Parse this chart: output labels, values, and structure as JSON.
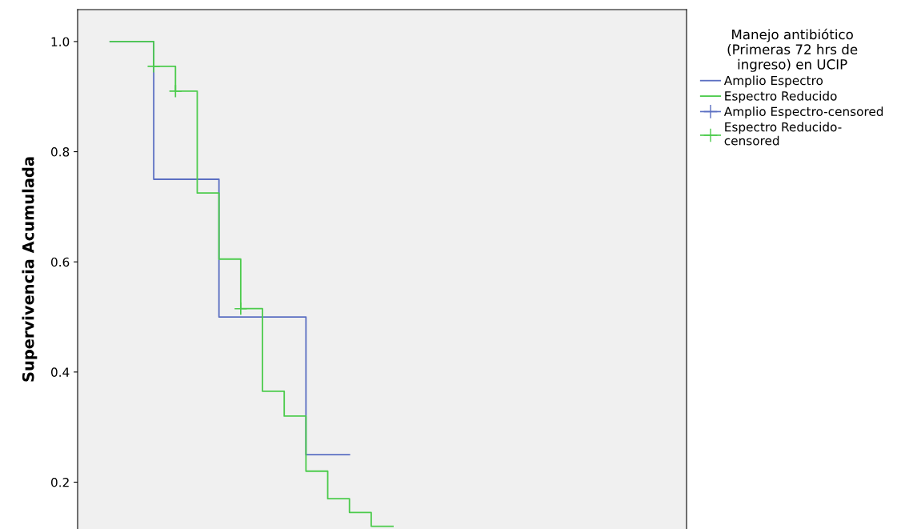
{
  "chart_data": {
    "type": "step",
    "ylabel": "Supervivencia Acumulada",
    "legend_title": "Manejo antibiótico\n(Primeras 72 hrs de\ningreso) en UCIP",
    "categories": [
      null,
      null,
      null,
      null,
      null,
      null,
      null,
      null,
      null,
      null,
      null,
      null,
      null,
      null,
      null,
      null,
      null,
      null,
      null,
      null,
      null,
      null,
      null,
      null,
      null,
      null,
      null,
      null
    ],
    "series": [
      {
        "name": "Amplio Espectro",
        "color": "#5b6fc2",
        "values": [
          null,
          1.0,
          1.0,
          0.75,
          0.75,
          0.75,
          0.5,
          0.5,
          0.5,
          0.5,
          0.25,
          0.25,
          0.25,
          null,
          null,
          null,
          null,
          null,
          null,
          null,
          null,
          null,
          null,
          null,
          null,
          null,
          null,
          null
        ]
      },
      {
        "name": "Espectro Reducido",
        "color": "#4ccb4c",
        "values": [
          null,
          1.0,
          1.0,
          0.955,
          0.91,
          0.725,
          0.605,
          0.515,
          0.365,
          0.32,
          0.22,
          0.17,
          0.145,
          0.12,
          0.12,
          null,
          null,
          null,
          null,
          null,
          null,
          null,
          null,
          null,
          null,
          null,
          null,
          null
        ]
      },
      {
        "name": "Amplio Espectro-censored",
        "color": "#5b6fc2",
        "type": "scatter",
        "marker": "cross",
        "values": [
          null,
          null,
          null,
          null,
          null,
          null,
          null,
          null,
          null,
          null,
          null,
          null,
          null,
          null,
          null,
          null,
          null,
          null,
          null,
          null,
          null,
          null,
          null,
          null,
          null,
          null,
          null,
          null
        ]
      },
      {
        "name": "Espectro Reducido-\ncensored",
        "color": "#4ccb4c",
        "type": "scatter",
        "marker": "cross",
        "values": [
          null,
          null,
          null,
          0.955,
          0.91,
          null,
          null,
          0.515,
          null,
          null,
          null,
          null,
          null,
          null,
          null,
          null,
          null,
          null,
          null,
          null,
          null,
          null,
          null,
          null,
          null,
          null,
          null,
          null
        ]
      }
    ],
    "ylim": [
      0.115,
      1.058
    ],
    "yticks": [
      {
        "value": 0.2,
        "label": "0.2"
      },
      {
        "value": 0.4,
        "label": "0.4"
      },
      {
        "value": 0.6,
        "label": "0.6"
      },
      {
        "value": 0.8,
        "label": "0.8"
      },
      {
        "value": 1.0,
        "label": "1.0"
      }
    ],
    "tick_labels": "y",
    "legend": "right"
  }
}
